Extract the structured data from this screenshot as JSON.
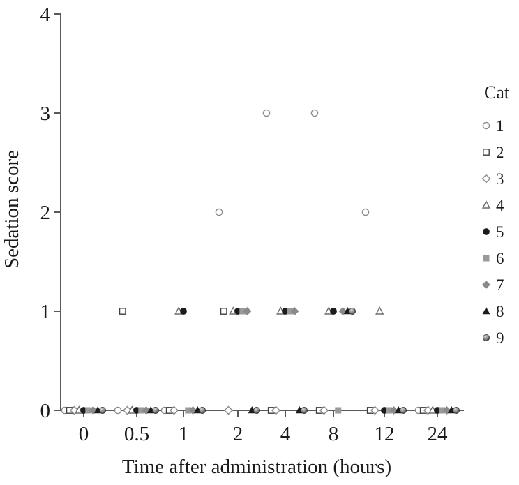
{
  "figure": {
    "kind": "scatter-plot",
    "background": "#ffffff",
    "text_color": "#1a1a1a",
    "axis_color": "#595959"
  },
  "chart_data": {
    "type": "scatter",
    "title": "",
    "xlabel": "Time after administration (hours)",
    "ylabel": "Sedation score",
    "x_categories": [
      "0",
      "0.5",
      "1",
      "2",
      "4",
      "8",
      "12",
      "24"
    ],
    "x_values_hours": [
      0,
      0.5,
      1,
      2,
      4,
      8,
      12,
      24
    ],
    "y_ticks": [
      "0",
      "1",
      "2",
      "3",
      "4"
    ],
    "ylim": [
      0,
      4
    ],
    "grid": false,
    "legend_title": "Cat",
    "legend_position": "right",
    "series": [
      {
        "name": "1",
        "marker": "circle",
        "filled": false,
        "color": "#8c8c8c",
        "scores": [
          0,
          0,
          0,
          2,
          3,
          3,
          2,
          0
        ]
      },
      {
        "name": "2",
        "marker": "square",
        "filled": false,
        "color": "#3f3f3f",
        "scores": [
          0,
          1,
          0,
          1,
          0,
          0,
          0,
          0
        ]
      },
      {
        "name": "3",
        "marker": "diamond",
        "filled": false,
        "color": "#8c8c8c",
        "scores": [
          0,
          0,
          0,
          0,
          0,
          0,
          0,
          0
        ]
      },
      {
        "name": "4",
        "marker": "triangle",
        "filled": false,
        "color": "#6e6e6e",
        "scores": [
          0,
          0,
          1,
          1,
          1,
          1,
          1,
          0
        ]
      },
      {
        "name": "5",
        "marker": "circle",
        "filled": true,
        "color": "#1c1c1c",
        "scores": [
          0,
          0,
          1,
          1,
          1,
          1,
          0,
          0
        ]
      },
      {
        "name": "6",
        "marker": "square",
        "filled": true,
        "color": "#9a9a9a",
        "scores": [
          0,
          0,
          0,
          1,
          1,
          0,
          0,
          0
        ]
      },
      {
        "name": "7",
        "marker": "diamond",
        "filled": true,
        "color": "#8a8a8a",
        "scores": [
          0,
          0,
          0,
          1,
          1,
          1,
          0,
          0
        ]
      },
      {
        "name": "8",
        "marker": "triangle",
        "filled": true,
        "color": "#1c1c1c",
        "scores": [
          0,
          0,
          0,
          0,
          0,
          1,
          0,
          0
        ]
      },
      {
        "name": "9",
        "marker": "ball",
        "filled": true,
        "color": "#8a8a8a",
        "scores": [
          0,
          0,
          0,
          0,
          0,
          1,
          0,
          0
        ]
      }
    ]
  }
}
